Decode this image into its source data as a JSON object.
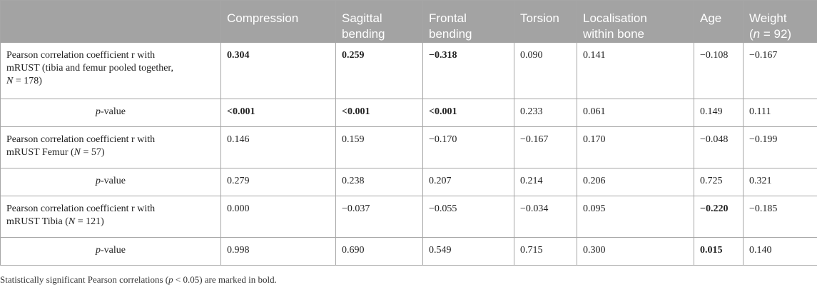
{
  "header": {
    "col0": "",
    "col1": "Compression",
    "col2a": "Sagittal",
    "col2b": "bending",
    "col3a": "Frontal",
    "col3b": "bending",
    "col4": "Torsion",
    "col5a": "Localisation",
    "col5b": "within bone",
    "col6": "Age",
    "col7a": "Weight",
    "col7b_open": "(",
    "col7b_n": "n",
    "col7b_rest": " = 92)"
  },
  "rows": [
    {
      "label_lines": [
        "Pearson correlation coefficient r with",
        "mRUST (tibia and femur pooled together,"
      ],
      "label_N": "N",
      "label_tail": " = 178)",
      "values": [
        "0.304",
        "0.259",
        "−0.318",
        "0.090",
        "0.141",
        "−0.108",
        "−0.167"
      ]
    },
    {
      "label_p": "p",
      "label_tail": "-value",
      "values": [
        "<0.001",
        "<0.001",
        "<0.001",
        "0.233",
        "0.061",
        "0.149",
        "0.111"
      ]
    },
    {
      "label_lines": [
        "Pearson correlation coefficient r with",
        "mRUST Femur ("
      ],
      "label_N": "N",
      "label_tail": " = 57)",
      "values": [
        "0.146",
        "0.159",
        "−0.170",
        "−0.167",
        "0.170",
        "−0.048",
        "−0.199"
      ]
    },
    {
      "label_p": "p",
      "label_tail": "-value",
      "values": [
        "0.279",
        "0.238",
        "0.207",
        "0.214",
        "0.206",
        "0.725",
        "0.321"
      ]
    },
    {
      "label_lines": [
        "Pearson correlation coefficient r with",
        "mRUST Tibia ("
      ],
      "label_N": "N",
      "label_tail": " = 121)",
      "values": [
        "0.000",
        "−0.037",
        "−0.055",
        "−0.034",
        "0.095",
        "−0.220",
        "−0.185"
      ]
    },
    {
      "label_p": "p",
      "label_tail": "-value",
      "values": [
        "0.998",
        "0.690",
        "0.549",
        "0.715",
        "0.300",
        "0.015",
        "0.140"
      ]
    }
  ],
  "footnote": {
    "before": "Statistically significant Pearson correlations (",
    "p": "p",
    "after": " < 0.05) are marked in bold."
  }
}
